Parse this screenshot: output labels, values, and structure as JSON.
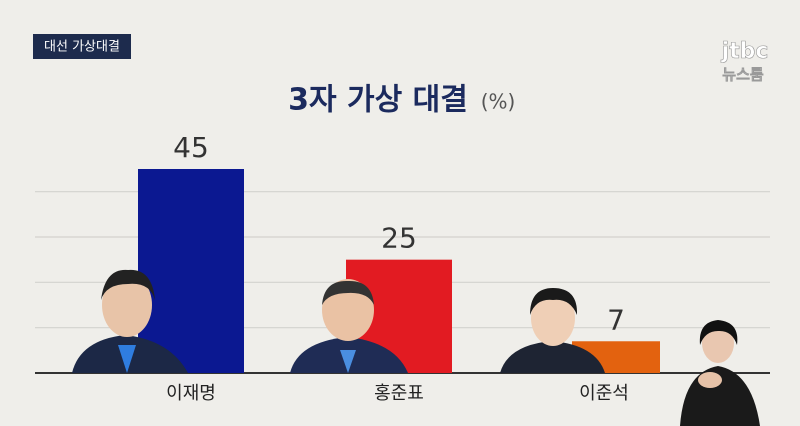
{
  "badge": "대선 가상대결",
  "logo": {
    "brand": "jtbc",
    "program": "뉴스룸"
  },
  "chart_data": {
    "type": "bar",
    "title": "3자 가상 대결",
    "unit": "(%)",
    "categories": [
      "이재명",
      "홍준표",
      "이준석"
    ],
    "values": [
      45,
      25,
      7
    ],
    "colors": [
      "#0b1891",
      "#e21b22",
      "#e3620f"
    ],
    "ylim": [
      0,
      45
    ],
    "yticks": [
      0,
      10,
      20,
      30,
      40
    ],
    "grid": true
  }
}
